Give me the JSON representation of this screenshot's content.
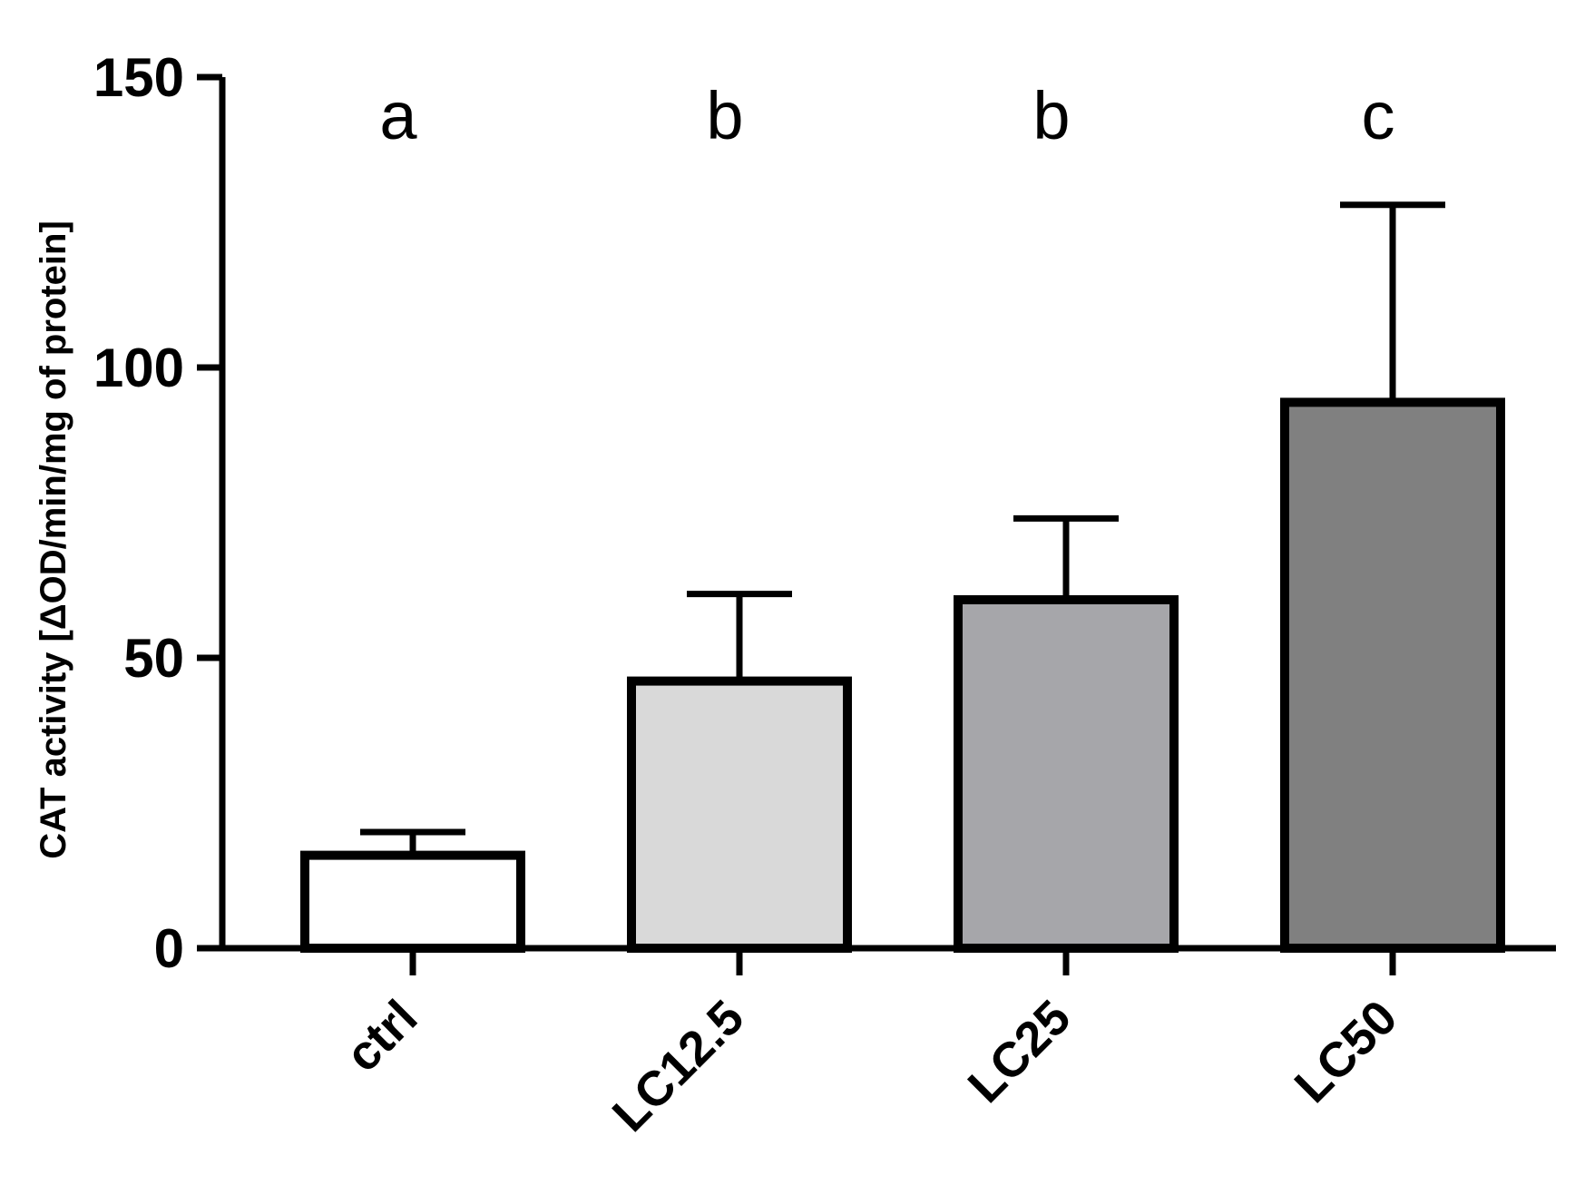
{
  "chart_data": {
    "type": "bar",
    "title": "",
    "xlabel": "",
    "ylabel": "CAT activity [ΔOD/min/mg of protein]",
    "ylim": [
      0,
      150
    ],
    "yticks": [
      0,
      50,
      100,
      150
    ],
    "categories": [
      "ctrl",
      "LC12.5",
      "LC25",
      "LC50"
    ],
    "values": [
      16,
      46,
      60,
      94
    ],
    "errors": [
      4,
      15,
      14,
      34
    ],
    "significance_letters": [
      "a",
      "b",
      "b",
      "c"
    ],
    "bar_colors": [
      "#ffffff",
      "#d9d9d9",
      "#a6a6aa",
      "#808080"
    ],
    "grid": false,
    "legend": "none"
  }
}
